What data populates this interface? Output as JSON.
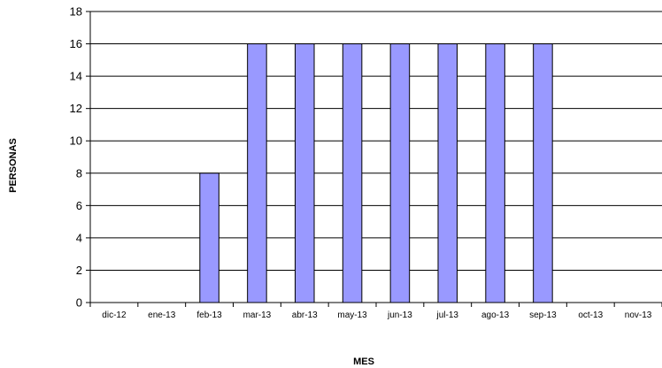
{
  "chart_data": {
    "type": "bar",
    "title": "",
    "xlabel": "MES",
    "ylabel": "PERSONAS",
    "categories": [
      "dic-12",
      "ene-13",
      "feb-13",
      "mar-13",
      "abr-13",
      "may-13",
      "jun-13",
      "jul-13",
      "ago-13",
      "sep-13",
      "oct-13",
      "nov-13"
    ],
    "values": [
      0,
      0,
      8,
      16,
      16,
      16,
      16,
      16,
      16,
      16,
      0,
      0
    ],
    "ylim": [
      0,
      18
    ],
    "yticks": [
      "0",
      "2",
      "4",
      "6",
      "8",
      "10",
      "12",
      "14",
      "16",
      "18"
    ],
    "grid": true,
    "legend": "none",
    "colors": {
      "bar_fill": "#9999ff",
      "bar_stroke": "#000000",
      "grid": "#000000",
      "axis": "#000000"
    }
  }
}
